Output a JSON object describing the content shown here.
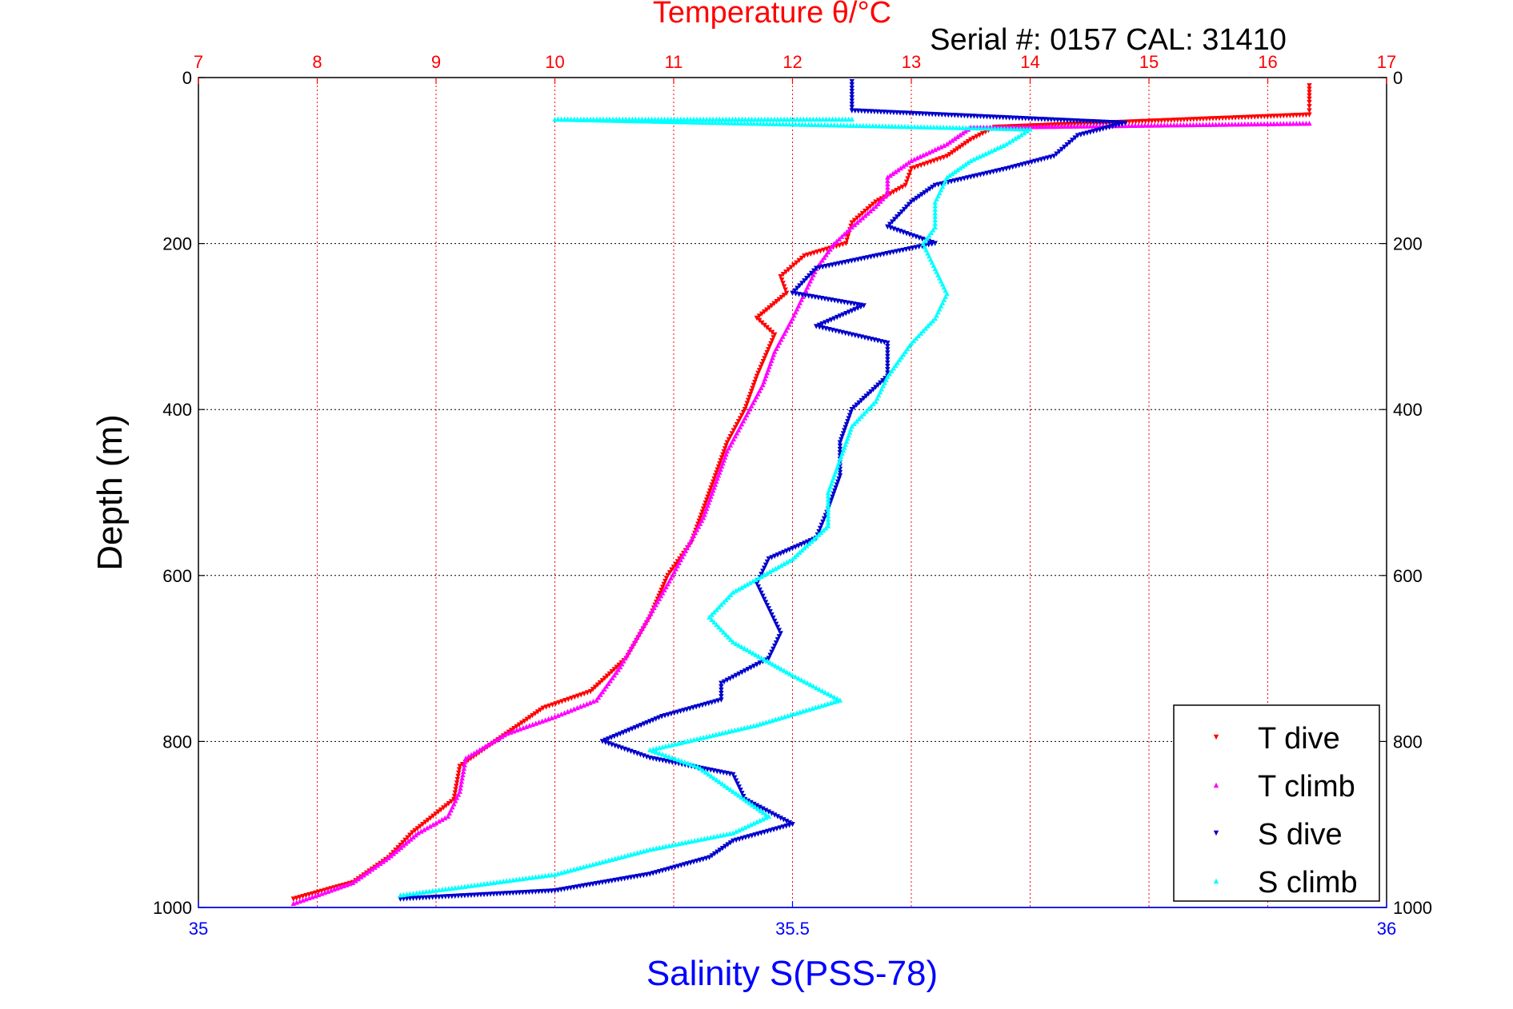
{
  "chart_data": {
    "type": "scatter",
    "title": "Temperature θ/°C",
    "subtitle": "Serial #: 0157  CAL: 31410",
    "ylabel": "Depth (m)",
    "xlabel": "Salinity S(PSS-78)",
    "ylim": [
      0,
      1000
    ],
    "temp_lim": [
      7,
      17
    ],
    "sal_lim": [
      35,
      36
    ],
    "temp_ticks": [
      "7",
      "8",
      "9",
      "10",
      "11",
      "12",
      "13",
      "14",
      "15",
      "16",
      "17"
    ],
    "sal_ticks": [
      "35",
      "35.5",
      "36"
    ],
    "depth_ticks": [
      "0",
      "200",
      "400",
      "600",
      "800",
      "1000"
    ],
    "grid": true,
    "legend_position": "bottom-right",
    "series": [
      {
        "name": "T dive",
        "axis": "temperature",
        "color": "#ff0000",
        "points": [
          [
            16.35,
            10
          ],
          [
            16.35,
            30
          ],
          [
            16.35,
            45
          ],
          [
            13.7,
            60
          ],
          [
            13.5,
            75
          ],
          [
            13.3,
            95
          ],
          [
            13.0,
            110
          ],
          [
            12.95,
            130
          ],
          [
            12.7,
            150
          ],
          [
            12.5,
            175
          ],
          [
            12.45,
            200
          ],
          [
            12.1,
            215
          ],
          [
            11.9,
            240
          ],
          [
            11.95,
            260
          ],
          [
            11.7,
            290
          ],
          [
            11.85,
            310
          ],
          [
            11.7,
            360
          ],
          [
            11.6,
            400
          ],
          [
            11.45,
            440
          ],
          [
            11.35,
            480
          ],
          [
            11.25,
            520
          ],
          [
            11.15,
            560
          ],
          [
            10.95,
            600
          ],
          [
            10.8,
            650
          ],
          [
            10.6,
            700
          ],
          [
            10.3,
            740
          ],
          [
            9.9,
            760
          ],
          [
            9.5,
            800
          ],
          [
            9.2,
            830
          ],
          [
            9.15,
            870
          ],
          [
            8.8,
            910
          ],
          [
            8.6,
            940
          ],
          [
            8.3,
            970
          ],
          [
            7.8,
            990
          ]
        ]
      },
      {
        "name": "T climb",
        "axis": "temperature",
        "color": "#ff00ff",
        "points": [
          [
            16.35,
            55
          ],
          [
            13.5,
            60
          ],
          [
            13.3,
            80
          ],
          [
            13.0,
            100
          ],
          [
            12.8,
            120
          ],
          [
            12.8,
            140
          ],
          [
            12.7,
            155
          ],
          [
            12.5,
            180
          ],
          [
            12.35,
            200
          ],
          [
            12.2,
            230
          ],
          [
            12.1,
            260
          ],
          [
            12.0,
            290
          ],
          [
            11.85,
            330
          ],
          [
            11.75,
            370
          ],
          [
            11.6,
            410
          ],
          [
            11.45,
            450
          ],
          [
            11.35,
            490
          ],
          [
            11.25,
            530
          ],
          [
            11.1,
            570
          ],
          [
            10.95,
            610
          ],
          [
            10.75,
            660
          ],
          [
            10.55,
            710
          ],
          [
            10.35,
            750
          ],
          [
            10.0,
            770
          ],
          [
            9.6,
            790
          ],
          [
            9.25,
            820
          ],
          [
            9.2,
            860
          ],
          [
            9.1,
            890
          ],
          [
            8.85,
            910
          ],
          [
            8.6,
            940
          ],
          [
            8.3,
            970
          ],
          [
            7.8,
            995
          ]
        ]
      },
      {
        "name": "S dive",
        "axis": "salinity",
        "color": "#0000cc",
        "points": [
          [
            35.55,
            5
          ],
          [
            35.55,
            40
          ],
          [
            35.78,
            55
          ],
          [
            35.74,
            70
          ],
          [
            35.72,
            95
          ],
          [
            35.68,
            110
          ],
          [
            35.62,
            130
          ],
          [
            35.6,
            150
          ],
          [
            35.58,
            180
          ],
          [
            35.62,
            200
          ],
          [
            35.52,
            230
          ],
          [
            35.5,
            260
          ],
          [
            35.56,
            275
          ],
          [
            35.52,
            300
          ],
          [
            35.58,
            320
          ],
          [
            35.58,
            360
          ],
          [
            35.55,
            400
          ],
          [
            35.54,
            440
          ],
          [
            35.54,
            480
          ],
          [
            35.53,
            520
          ],
          [
            35.52,
            555
          ],
          [
            35.48,
            580
          ],
          [
            35.47,
            610
          ],
          [
            35.48,
            640
          ],
          [
            35.49,
            670
          ],
          [
            35.48,
            700
          ],
          [
            35.44,
            730
          ],
          [
            35.44,
            750
          ],
          [
            35.39,
            770
          ],
          [
            35.34,
            800
          ],
          [
            35.38,
            820
          ],
          [
            35.45,
            840
          ],
          [
            35.46,
            870
          ],
          [
            35.5,
            900
          ],
          [
            35.45,
            920
          ],
          [
            35.43,
            940
          ],
          [
            35.38,
            960
          ],
          [
            35.3,
            980
          ],
          [
            35.17,
            990
          ]
        ]
      },
      {
        "name": "S climb",
        "axis": "salinity",
        "color": "#00ffff",
        "points": [
          [
            35.55,
            50
          ],
          [
            35.3,
            50
          ],
          [
            35.7,
            62
          ],
          [
            35.68,
            80
          ],
          [
            35.65,
            100
          ],
          [
            35.63,
            120
          ],
          [
            35.62,
            150
          ],
          [
            35.62,
            180
          ],
          [
            35.61,
            200
          ],
          [
            35.62,
            230
          ],
          [
            35.63,
            260
          ],
          [
            35.62,
            290
          ],
          [
            35.6,
            320
          ],
          [
            35.58,
            360
          ],
          [
            35.57,
            390
          ],
          [
            35.55,
            420
          ],
          [
            35.54,
            460
          ],
          [
            35.53,
            500
          ],
          [
            35.53,
            540
          ],
          [
            35.5,
            580
          ],
          [
            35.45,
            620
          ],
          [
            35.43,
            650
          ],
          [
            35.45,
            680
          ],
          [
            35.5,
            720
          ],
          [
            35.54,
            750
          ],
          [
            35.47,
            780
          ],
          [
            35.38,
            810
          ],
          [
            35.42,
            830
          ],
          [
            35.45,
            860
          ],
          [
            35.48,
            890
          ],
          [
            35.45,
            910
          ],
          [
            35.38,
            930
          ],
          [
            35.3,
            960
          ],
          [
            35.17,
            985
          ]
        ]
      }
    ]
  }
}
